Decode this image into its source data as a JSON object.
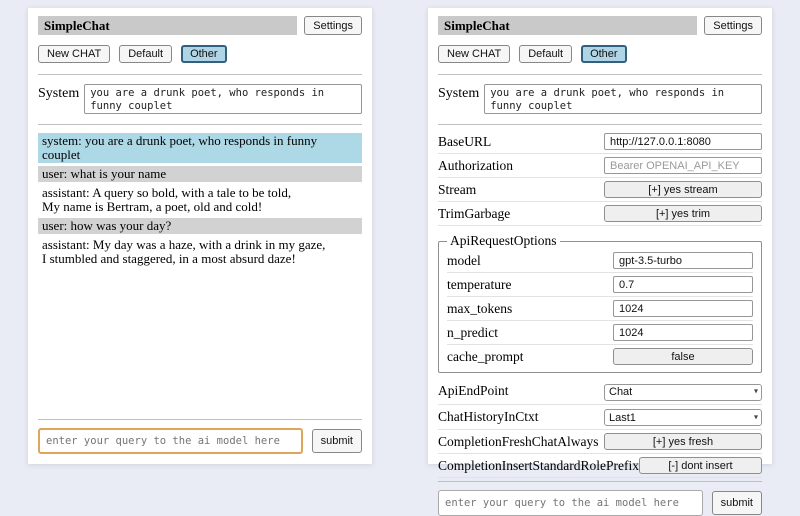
{
  "chat_panel": {
    "title": "SimpleChat",
    "settings_button": "Settings",
    "session_buttons": {
      "new_chat": "New CHAT",
      "default": "Default",
      "other": "Other"
    },
    "system": {
      "label": "System",
      "value": "you are a drunk poet, who responds in funny couplet"
    },
    "messages": [
      {
        "role": "system",
        "text": "system: you are a drunk poet, who responds in funny couplet"
      },
      {
        "role": "user",
        "text": "user: what is your name"
      },
      {
        "role": "assistant",
        "text": "assistant: A query so bold, with a tale to be told,\nMy name is Bertram, a poet, old and cold!"
      },
      {
        "role": "user",
        "text": "user: how was your day?"
      },
      {
        "role": "assistant",
        "text": "assistant: My day was a haze, with a drink in my gaze,\nI stumbled and staggered, in a most absurd daze!"
      }
    ],
    "query": {
      "placeholder": "enter your query to the ai model here",
      "submit_label": "submit"
    }
  },
  "settings_panel": {
    "title": "SimpleChat",
    "settings_button": "Settings",
    "session_buttons": {
      "new_chat": "New CHAT",
      "default": "Default",
      "other": "Other"
    },
    "system": {
      "label": "System",
      "value": "you are a drunk poet, who responds in funny couplet"
    },
    "rows": [
      {
        "label": "BaseURL",
        "value": "http://127.0.0.1:8080"
      },
      {
        "label": "Authorization",
        "placeholder": "Bearer OPENAI_API_KEY"
      },
      {
        "label": "Stream",
        "button": "[+] yes stream"
      },
      {
        "label": "TrimGarbage",
        "button": "[+] yes trim"
      }
    ],
    "api_request_options": {
      "legend": "ApiRequestOptions",
      "rows": [
        {
          "label": "model",
          "value": "gpt-3.5-turbo"
        },
        {
          "label": "temperature",
          "value": "0.7"
        },
        {
          "label": "max_tokens",
          "value": "1024"
        },
        {
          "label": "n_predict",
          "value": "1024"
        },
        {
          "label": "cache_prompt",
          "button": "false"
        }
      ]
    },
    "rows2": [
      {
        "label": "ApiEndPoint",
        "selected": "Chat"
      },
      {
        "label": "ChatHistoryInCtxt",
        "selected": "Last1"
      },
      {
        "label": "CompletionFreshChatAlways",
        "button": "[+] yes fresh"
      },
      {
        "label": "CompletionInsertStandardRolePrefix",
        "button": "[-] dont insert"
      }
    ],
    "query": {
      "placeholder": "enter your query to the ai model here",
      "submit_label": "submit"
    }
  },
  "colors": {
    "system_msg_bg": "#add8e6",
    "user_msg_bg": "#d2d2d2",
    "selected_button_bg": "#aed4e6",
    "selected_button_border": "#33607e",
    "focused_input_border": "#dca758",
    "titlebar_bg": "#c9c9c9",
    "page_bg": "#e9ecf4"
  }
}
